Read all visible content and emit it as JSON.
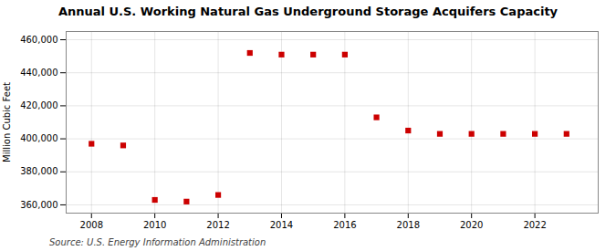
{
  "chart_data": {
    "type": "scatter",
    "title": "Annual U.S. Working Natural Gas Underground Storage Acquifers Capacity",
    "ylabel": "Million Cubic Feet",
    "source": "Source: U.S. Energy Information Administration",
    "x": [
      2008,
      2009,
      2010,
      2011,
      2012,
      2013,
      2014,
      2015,
      2016,
      2017,
      2018,
      2019,
      2020,
      2021,
      2022,
      2023
    ],
    "values": [
      397000,
      396000,
      363000,
      362000,
      366000,
      452000,
      451000,
      451000,
      451000,
      413000,
      405000,
      403000,
      403000,
      403000,
      403000,
      403000
    ],
    "color": "#cc0000",
    "marker": "square",
    "xlim": [
      2007.2,
      2024
    ],
    "xticks": [
      2008,
      2010,
      2012,
      2014,
      2016,
      2018,
      2020,
      2022
    ],
    "ylim": [
      355000,
      465000
    ],
    "yticks": [
      {
        "value": 360000,
        "label": "360,000"
      },
      {
        "value": 380000,
        "label": "380,000"
      },
      {
        "value": 400000,
        "label": "400,000"
      },
      {
        "value": 420000,
        "label": "420,000"
      },
      {
        "value": 440000,
        "label": "440,000"
      },
      {
        "value": 460000,
        "label": "460,000"
      }
    ],
    "grid": true
  }
}
